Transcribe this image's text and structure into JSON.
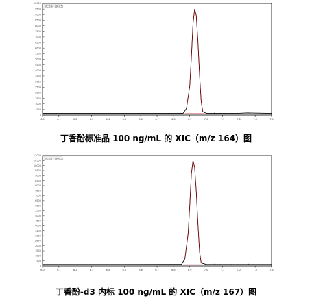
{
  "charts": [
    {
      "caption": "丁香酚标准品 100 ng/mL 的 XIC（m/z 164）图",
      "header": "EIC 164 (163.5)",
      "chart_data": {
        "type": "line",
        "xlim": [
          6.0,
          7.4
        ],
        "ylim": [
          0,
          10000
        ],
        "x_ticks": [
          "6.0",
          "6.1",
          "6.2",
          "6.3",
          "6.4",
          "6.5",
          "6.6",
          "6.7",
          "6.8",
          "6.9",
          "7.0",
          "7.1",
          "7.2",
          "7.3",
          "7.4"
        ],
        "y_ticks": [
          "0",
          "500",
          "1000",
          "1500",
          "2000",
          "2500",
          "3000",
          "3500",
          "4000",
          "4500",
          "5000",
          "5500",
          "6000",
          "6500",
          "7000",
          "7500",
          "8000",
          "8500",
          "9000",
          "9500",
          "10000"
        ],
        "peak_rt": 6.93,
        "peak_height": 9500,
        "baseline": 150,
        "series": [
          {
            "x": [
              6.0,
              6.5,
              6.86,
              6.88,
              6.9,
              6.91,
              6.92,
              6.93,
              6.94,
              6.95,
              6.96,
              6.97,
              6.98,
              7.0,
              7.2,
              7.25,
              7.4
            ],
            "y": [
              150,
              150,
              160,
              600,
              2600,
              5200,
              8200,
              9500,
              8900,
              6600,
              3600,
              1200,
              300,
              160,
              160,
              190,
              150
            ]
          }
        ],
        "integration": {
          "x": [
            6.87,
            6.99
          ],
          "y": [
            150,
            150
          ]
        }
      }
    },
    {
      "caption": "丁香酚-d3 内标 100 ng/mL 的 XIC（m/z 167）图",
      "header": "EIC 167 (166.5)",
      "chart_data": {
        "type": "line",
        "xlim": [
          6.0,
          7.4
        ],
        "ylim": [
          0,
          11000
        ],
        "x_ticks": [
          "6.0",
          "6.1",
          "6.2",
          "6.3",
          "6.4",
          "6.5",
          "6.6",
          "6.7",
          "6.8",
          "6.9",
          "7.0",
          "7.1",
          "7.2",
          "7.3",
          "7.4"
        ],
        "y_ticks": [
          "0",
          "500",
          "1000",
          "1500",
          "2000",
          "2500",
          "3000",
          "3500",
          "4000",
          "4500",
          "5000",
          "5500",
          "6000",
          "6500",
          "7000",
          "7500",
          "8000",
          "8500",
          "9000",
          "9500",
          "10000",
          "10500",
          "11000"
        ],
        "peak_rt": 6.92,
        "peak_height": 10500,
        "baseline": 150,
        "series": [
          {
            "x": [
              6.0,
              6.5,
              6.85,
              6.87,
              6.89,
              6.9,
              6.91,
              6.92,
              6.93,
              6.94,
              6.95,
              6.96,
              6.97,
              7.0,
              7.4
            ],
            "y": [
              150,
              150,
              160,
              700,
              3200,
              6000,
              9200,
              10500,
              9800,
              7400,
              4200,
              1400,
              300,
              160,
              150
            ]
          }
        ],
        "integration": {
          "x": [
            6.86,
            6.98
          ],
          "y": [
            150,
            150
          ]
        }
      }
    }
  ]
}
